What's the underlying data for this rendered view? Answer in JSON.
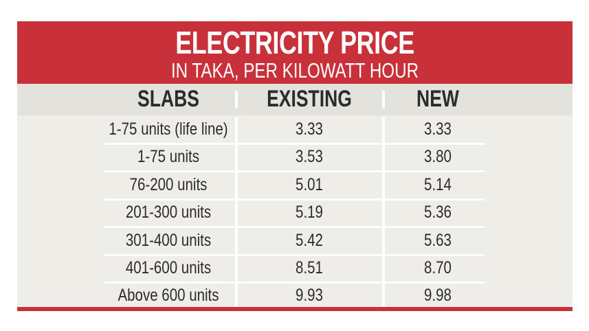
{
  "chart_data": {
    "type": "table",
    "title": "ELECTRICITY PRICE",
    "subtitle": "IN TAKA, PER KILOWATT HOUR",
    "columns": [
      "SLABS",
      "EXISTING",
      "NEW"
    ],
    "rows": [
      {
        "slab": "1-75 units (life line)",
        "existing": "3.33",
        "new": "3.33"
      },
      {
        "slab": "1-75 units",
        "existing": "3.53",
        "new": "3.80"
      },
      {
        "slab": "76-200 units",
        "existing": "5.01",
        "new": "5.14"
      },
      {
        "slab": "201-300 units",
        "existing": "5.19",
        "new": "5.36"
      },
      {
        "slab": "301-400 units",
        "existing": "5.42",
        "new": "5.63"
      },
      {
        "slab": "401-600 units",
        "existing": "8.51",
        "new": "8.70"
      },
      {
        "slab": "Above 600 units",
        "existing": "9.93",
        "new": "9.98"
      }
    ],
    "colors": {
      "header": "#c8313a",
      "column_header_bg": "#e3e2dc",
      "body_bg": "#efede7"
    }
  }
}
